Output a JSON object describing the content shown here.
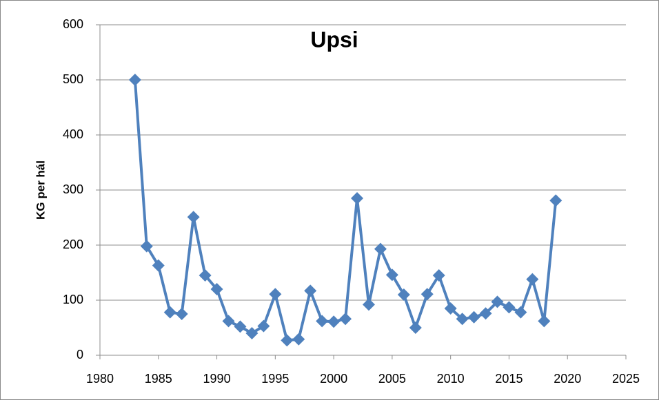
{
  "chart_data": {
    "type": "line",
    "title": "Upsi",
    "y_label": "KG per hál",
    "x": [
      1983,
      1984,
      1985,
      1986,
      1987,
      1988,
      1989,
      1990,
      1991,
      1992,
      1993,
      1994,
      1995,
      1996,
      1997,
      1998,
      1999,
      2000,
      2001,
      2002,
      2003,
      2004,
      2005,
      2006,
      2007,
      2008,
      2009,
      2010,
      2011,
      2012,
      2013,
      2014,
      2015,
      2016,
      2017,
      2018,
      2019
    ],
    "values": [
      500,
      198,
      163,
      78,
      75,
      251,
      145,
      120,
      62,
      52,
      40,
      53,
      111,
      27,
      29,
      117,
      62,
      61,
      66,
      285,
      92,
      193,
      146,
      110,
      50,
      111,
      145,
      85,
      66,
      69,
      76,
      97,
      87,
      78,
      138,
      62,
      281
    ],
    "color": "#4f81bd",
    "marker": "diamond",
    "xlim": [
      1980,
      2025
    ],
    "xticks": [
      1980,
      1985,
      1990,
      1995,
      2000,
      2005,
      2010,
      2015,
      2020,
      2025
    ],
    "ylim": [
      0,
      600
    ],
    "yticks": [
      0,
      100,
      200,
      300,
      400,
      500,
      600
    ],
    "grid": true
  }
}
